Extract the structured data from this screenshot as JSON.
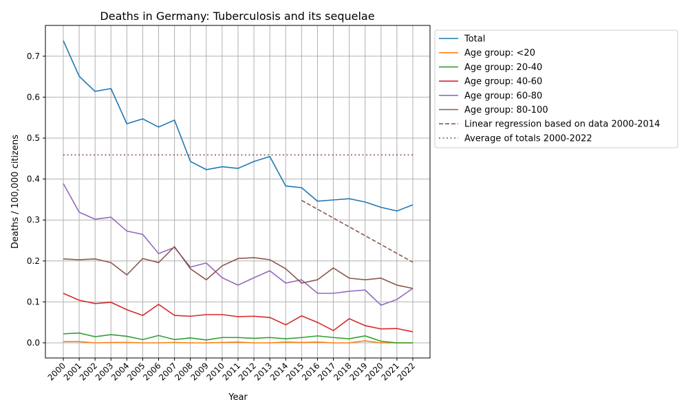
{
  "chart_data": {
    "type": "line",
    "title": "Deaths in Germany: Tuberculosis and its sequelae",
    "xlabel": "Year",
    "ylabel": "Deaths / 100,000 citizens",
    "ylim": [
      -0.037,
      0.775
    ],
    "yticks": [
      "0.0",
      "0.1",
      "0.2",
      "0.3",
      "0.4",
      "0.5",
      "0.6",
      "0.7"
    ],
    "grid": true,
    "legend_position": "outside-right-top",
    "x": [
      2000,
      2001,
      2002,
      2003,
      2004,
      2005,
      2006,
      2007,
      2008,
      2009,
      2010,
      2011,
      2012,
      2013,
      2014,
      2015,
      2016,
      2017,
      2018,
      2019,
      2020,
      2021,
      2022
    ],
    "series": [
      {
        "name": "Total",
        "color": "#1f77b4",
        "style": "solid",
        "values": [
          0.738,
          0.651,
          0.614,
          0.621,
          0.535,
          0.547,
          0.527,
          0.544,
          0.443,
          0.423,
          0.43,
          0.426,
          0.443,
          0.455,
          0.383,
          0.379,
          0.346,
          0.349,
          0.352,
          0.344,
          0.331,
          0.322,
          0.337
        ]
      },
      {
        "name": "Age group: <20",
        "color": "#ff7f0e",
        "style": "solid",
        "values": [
          0.003,
          0.003,
          0.0,
          0.001,
          0.001,
          0.0,
          0.0,
          0.001,
          0.0,
          0.0,
          0.001,
          0.002,
          0.0,
          0.0,
          0.002,
          0.001,
          0.002,
          0.0,
          0.0,
          0.005,
          0.0,
          0.0,
          0.0
        ]
      },
      {
        "name": "Age group: 20-40",
        "color": "#2ca02c",
        "style": "solid",
        "values": [
          0.022,
          0.024,
          0.015,
          0.02,
          0.016,
          0.008,
          0.018,
          0.008,
          0.012,
          0.007,
          0.013,
          0.013,
          0.011,
          0.013,
          0.01,
          0.013,
          0.017,
          0.013,
          0.01,
          0.017,
          0.004,
          0.0,
          0.0
        ]
      },
      {
        "name": "Age group: 40-60",
        "color": "#d62728",
        "style": "solid",
        "values": [
          0.121,
          0.104,
          0.096,
          0.099,
          0.081,
          0.067,
          0.094,
          0.067,
          0.065,
          0.069,
          0.069,
          0.064,
          0.065,
          0.062,
          0.044,
          0.066,
          0.05,
          0.03,
          0.059,
          0.042,
          0.034,
          0.035,
          0.027
        ]
      },
      {
        "name": "Age group: 60-80",
        "color": "#9467bd",
        "style": "solid",
        "values": [
          0.389,
          0.319,
          0.302,
          0.307,
          0.273,
          0.265,
          0.218,
          0.233,
          0.185,
          0.195,
          0.159,
          0.141,
          0.159,
          0.176,
          0.146,
          0.154,
          0.121,
          0.121,
          0.126,
          0.129,
          0.092,
          0.106,
          0.133
        ]
      },
      {
        "name": "Age group: 80-100",
        "color": "#8c564b",
        "style": "solid",
        "values": [
          0.205,
          0.203,
          0.205,
          0.196,
          0.166,
          0.206,
          0.196,
          0.235,
          0.181,
          0.154,
          0.188,
          0.206,
          0.208,
          0.203,
          0.181,
          0.146,
          0.154,
          0.183,
          0.158,
          0.154,
          0.158,
          0.141,
          0.133
        ]
      },
      {
        "name": "Linear regression based on data 2000-2014",
        "color": "#8c564b",
        "style": "dashed",
        "x": [
          2015,
          2022
        ],
        "values": [
          0.348,
          0.197
        ]
      },
      {
        "name": "Average of totals 2000-2022",
        "color": "#8c564b",
        "style": "dotted",
        "x": [
          2000,
          2022
        ],
        "values": [
          0.459,
          0.459
        ]
      }
    ]
  }
}
